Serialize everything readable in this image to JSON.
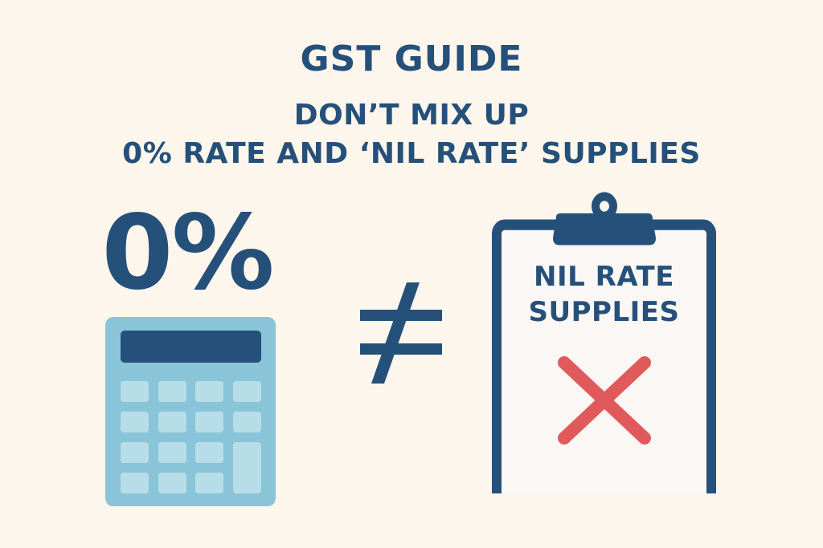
{
  "title": "GST GUIDE",
  "subtitle_line1": "DON’T MIX UP",
  "subtitle_line2": "0% RATE AND ‘NIL RATE’ SUPPLIES",
  "left_label": "0%",
  "right_label_line1": "NIL RATE",
  "right_label_line2": "SUPPLIES",
  "icons": {
    "calculator": "calculator-icon",
    "not_equal": "not-equal-icon",
    "clipboard": "clipboard-icon",
    "cross": "cross-icon"
  },
  "colors": {
    "background": "#fcf6ec",
    "navy": "#25507a",
    "calculator_body": "#8ac4d8",
    "calculator_keys": "#b7dde9",
    "clipboard_paper": "#fbf7f5",
    "cross_red": "#e05a5c"
  }
}
